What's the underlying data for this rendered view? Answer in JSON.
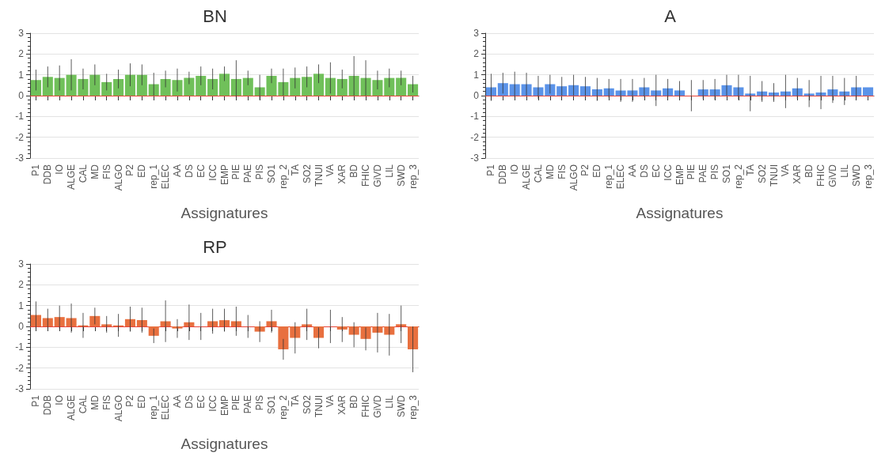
{
  "chart_data": [
    {
      "type": "bar",
      "title": "BN",
      "xlabel": "Assignatures",
      "categories": [
        "P1",
        "DDB",
        "IO",
        "ALGE",
        "CAL",
        "MD",
        "FIS",
        "ALGO",
        "P2",
        "ED",
        "rep_1",
        "ELEC",
        "AA",
        "DS",
        "EC",
        "ICC",
        "EMP",
        "PIE",
        "PAE",
        "PIS",
        "SO1",
        "rep_2",
        "TA",
        "SO2",
        "TNUI",
        "VA",
        "XAR",
        "BD",
        "FHIC",
        "GiVD",
        "LIL",
        "SWD",
        "rep_3"
      ],
      "color": "#70c05a",
      "values": [
        0.75,
        0.9,
        0.85,
        1.0,
        0.8,
        1.0,
        0.65,
        0.8,
        1.0,
        1.0,
        0.55,
        0.8,
        0.75,
        0.85,
        0.95,
        0.8,
        1.05,
        0.8,
        0.85,
        0.4,
        0.95,
        0.65,
        0.85,
        0.9,
        1.05,
        0.85,
        0.8,
        0.95,
        0.85,
        0.75,
        0.85,
        0.85,
        0.55
      ],
      "errors": [
        0.5,
        0.5,
        0.6,
        0.75,
        0.5,
        0.5,
        0.4,
        0.45,
        0.55,
        0.5,
        0.55,
        0.4,
        0.55,
        0.3,
        0.45,
        0.5,
        0.35,
        0.9,
        0.35,
        0.6,
        0.35,
        0.65,
        0.5,
        0.5,
        0.45,
        0.75,
        0.45,
        0.95,
        0.85,
        0.45,
        0.45,
        0.35,
        0.4
      ],
      "ylim": [
        -3,
        3
      ],
      "yticks": [
        -3,
        -2,
        -1,
        0,
        1,
        2,
        3
      ],
      "grid": "y",
      "ref_lines": [
        {
          "axis": "y",
          "value": 0,
          "color": "#e8443a"
        }
      ]
    },
    {
      "type": "bar",
      "title": "A",
      "xlabel": "Assignatures",
      "categories": [
        "P1",
        "DDB",
        "IO",
        "ALGE",
        "CAL",
        "MD",
        "FIS",
        "ALGO",
        "P2",
        "ED",
        "rep_1",
        "ELEC",
        "AA",
        "DS",
        "EC",
        "ICC",
        "EMP",
        "PIE",
        "PAE",
        "PIS",
        "SO1",
        "rep_2",
        "TA",
        "SO2",
        "TNUI",
        "VA",
        "XAR",
        "BD",
        "FHIC",
        "GiVD",
        "LIL",
        "SWD",
        "rep_3"
      ],
      "color": "#5b93e8",
      "values": [
        0.4,
        0.6,
        0.55,
        0.55,
        0.4,
        0.55,
        0.45,
        0.5,
        0.45,
        0.3,
        0.35,
        0.25,
        0.25,
        0.4,
        0.25,
        0.35,
        0.25,
        0,
        0.3,
        0.3,
        0.5,
        0.4,
        0.1,
        0.2,
        0.15,
        0.2,
        0.35,
        0.1,
        0.15,
        0.3,
        0.2,
        0.4,
        0.4
      ],
      "errors": [
        0.65,
        0.5,
        0.6,
        0.55,
        0.55,
        0.45,
        0.45,
        0.5,
        0.45,
        0.55,
        0.45,
        0.55,
        0.55,
        0.45,
        0.75,
        0.45,
        0.45,
        0.75,
        0.45,
        0.5,
        0.5,
        0.6,
        0.85,
        0.5,
        0.45,
        0.8,
        0.5,
        0.65,
        0.8,
        0.65,
        0.65,
        0.55,
        null
      ],
      "ylim": [
        -3,
        3
      ],
      "yticks": [
        -3,
        -2,
        -1,
        0,
        1,
        2,
        3
      ],
      "grid": "y",
      "ref_lines": [
        {
          "axis": "y",
          "value": 0,
          "color": "#e8443a"
        }
      ]
    },
    {
      "type": "bar",
      "title": "RP",
      "xlabel": "Assignatures",
      "categories": [
        "P1",
        "DDB",
        "IO",
        "ALGE",
        "CAL",
        "MD",
        "FIS",
        "ALGO",
        "P2",
        "ED",
        "rep_1",
        "ELEC",
        "AA",
        "DS",
        "EC",
        "ICC",
        "EMP",
        "PIE",
        "PAE",
        "PIS",
        "SO1",
        "rep_2",
        "TA",
        "SO2",
        "TNUI",
        "VA",
        "XAR",
        "BD",
        "FHIC",
        "GiVD",
        "LIL",
        "SWD",
        "rep_3"
      ],
      "color": "#e8703f",
      "values": [
        0.55,
        0.4,
        0.45,
        0.4,
        0.05,
        0.5,
        0.1,
        0.05,
        0.35,
        0.3,
        -0.45,
        0.25,
        -0.1,
        0.2,
        0,
        0.25,
        0.3,
        0.25,
        0,
        -0.25,
        0.25,
        -1.1,
        -0.55,
        0.1,
        -0.55,
        0,
        -0.15,
        -0.4,
        -0.6,
        -0.3,
        -0.4,
        0.1,
        -1.1
      ],
      "errors": [
        0.65,
        0.45,
        0.55,
        0.7,
        0.6,
        0.4,
        0.4,
        0.55,
        0.6,
        0.6,
        0.35,
        1.0,
        0.45,
        0.85,
        0.65,
        0.6,
        0.55,
        0.7,
        0.55,
        0.5,
        0.55,
        0.5,
        0.75,
        0.75,
        0.5,
        0.8,
        0.6,
        0.6,
        0.55,
        0.95,
        1.0,
        0.9,
        1.1
      ],
      "ylim": [
        -3,
        3
      ],
      "yticks": [
        -3,
        -2,
        -1,
        0,
        1,
        2,
        3
      ],
      "grid": "y",
      "ref_lines": [
        {
          "axis": "y",
          "value": 0,
          "color": "#e8443a"
        }
      ]
    }
  ]
}
